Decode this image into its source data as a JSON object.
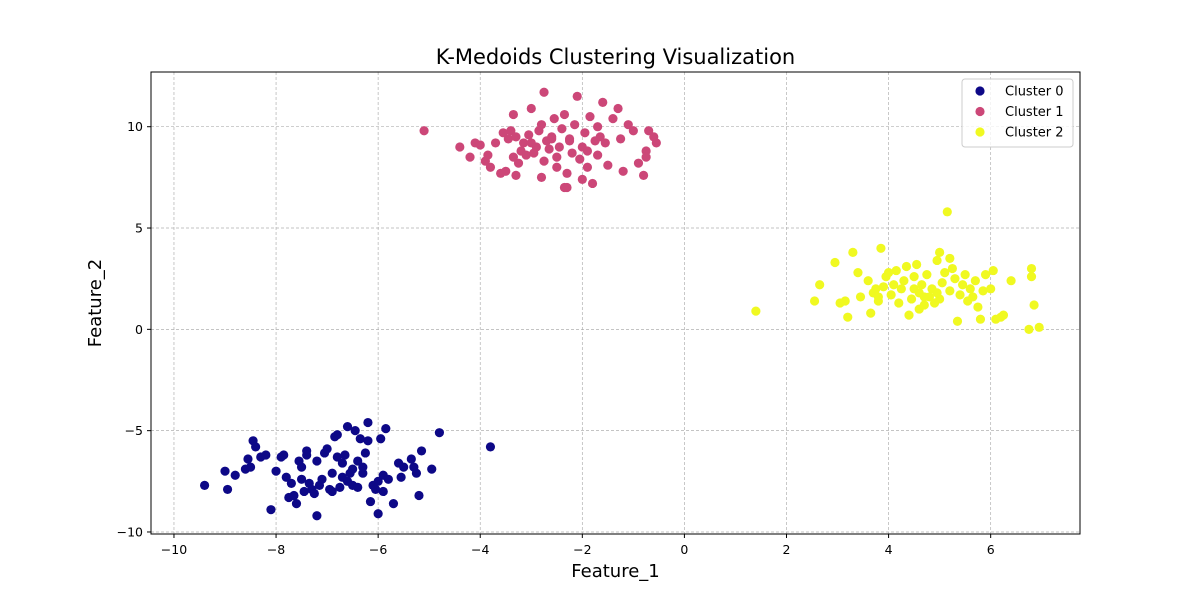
{
  "chart_data": {
    "type": "scatter",
    "title": "K-Medoids Clustering Visualization",
    "xlabel": "Feature_1",
    "ylabel": "Feature_2",
    "xlim": [
      -10.45,
      7.75
    ],
    "ylim": [
      -10.1,
      12.7
    ],
    "xticks": [
      -10,
      -8,
      -6,
      -4,
      -2,
      0,
      2,
      4,
      6
    ],
    "yticks": [
      -10,
      -5,
      0,
      5,
      10
    ],
    "xtick_labels": [
      "−10",
      "−8",
      "−6",
      "−4",
      "−2",
      "0",
      "2",
      "4",
      "6"
    ],
    "ytick_labels": [
      "−10",
      "−5",
      "0",
      "5",
      "10"
    ],
    "grid": true,
    "legend_position": "top-right",
    "series": [
      {
        "name": "Cluster 0",
        "color": "#0d0887",
        "points": [
          [
            -9.4,
            -7.7
          ],
          [
            -9.0,
            -7.0
          ],
          [
            -8.95,
            -7.9
          ],
          [
            -8.8,
            -7.2
          ],
          [
            -8.6,
            -6.9
          ],
          [
            -8.55,
            -6.4
          ],
          [
            -8.5,
            -6.8
          ],
          [
            -8.45,
            -5.5
          ],
          [
            -8.4,
            -5.8
          ],
          [
            -8.3,
            -6.3
          ],
          [
            -8.2,
            -6.2
          ],
          [
            -8.1,
            -8.9
          ],
          [
            -8.0,
            -7.0
          ],
          [
            -7.9,
            -6.3
          ],
          [
            -7.85,
            -6.2
          ],
          [
            -7.8,
            -7.3
          ],
          [
            -7.75,
            -8.3
          ],
          [
            -7.7,
            -7.6
          ],
          [
            -7.65,
            -8.2
          ],
          [
            -7.6,
            -8.6
          ],
          [
            -7.55,
            -6.5
          ],
          [
            -7.5,
            -6.8
          ],
          [
            -7.5,
            -7.4
          ],
          [
            -7.45,
            -8.0
          ],
          [
            -7.4,
            -6.2
          ],
          [
            -7.35,
            -7.6
          ],
          [
            -7.3,
            -7.9
          ],
          [
            -7.25,
            -8.1
          ],
          [
            -7.2,
            -6.5
          ],
          [
            -7.15,
            -7.7
          ],
          [
            -7.1,
            -7.4
          ],
          [
            -7.05,
            -6.1
          ],
          [
            -7.0,
            -5.9
          ],
          [
            -6.95,
            -7.9
          ],
          [
            -6.9,
            -7.1
          ],
          [
            -6.85,
            -5.3
          ],
          [
            -6.8,
            -5.2
          ],
          [
            -6.8,
            -6.3
          ],
          [
            -6.75,
            -7.8
          ],
          [
            -6.7,
            -6.6
          ],
          [
            -6.7,
            -7.3
          ],
          [
            -6.65,
            -6.2
          ],
          [
            -6.6,
            -4.8
          ],
          [
            -6.55,
            -7.1
          ],
          [
            -6.5,
            -6.9
          ],
          [
            -6.5,
            -7.7
          ],
          [
            -6.45,
            -5.0
          ],
          [
            -6.4,
            -6.5
          ],
          [
            -6.4,
            -7.8
          ],
          [
            -6.35,
            -5.4
          ],
          [
            -6.3,
            -7.1
          ],
          [
            -6.25,
            -6.1
          ],
          [
            -6.2,
            -4.6
          ],
          [
            -6.2,
            -5.5
          ],
          [
            -6.15,
            -8.5
          ],
          [
            -6.1,
            -7.7
          ],
          [
            -6.05,
            -7.9
          ],
          [
            -6.0,
            -7.5
          ],
          [
            -6.0,
            -9.1
          ],
          [
            -5.95,
            -5.4
          ],
          [
            -5.9,
            -7.2
          ],
          [
            -5.9,
            -8.0
          ],
          [
            -5.85,
            -4.9
          ],
          [
            -5.8,
            -7.4
          ],
          [
            -5.7,
            -8.6
          ],
          [
            -5.6,
            -6.6
          ],
          [
            -5.55,
            -7.3
          ],
          [
            -5.5,
            -6.8
          ],
          [
            -5.35,
            -6.4
          ],
          [
            -5.3,
            -6.8
          ],
          [
            -5.25,
            -7.1
          ],
          [
            -5.2,
            -8.2
          ],
          [
            -5.15,
            -6.0
          ],
          [
            -4.95,
            -6.9
          ],
          [
            -4.8,
            -5.1
          ],
          [
            -3.8,
            -5.8
          ],
          [
            -6.9,
            -8.0
          ],
          [
            -7.2,
            -9.2
          ],
          [
            -7.4,
            -6.0
          ],
          [
            -6.6,
            -7.5
          ],
          [
            -6.3,
            -6.8
          ]
        ]
      },
      {
        "name": "Cluster 1",
        "color": "#cc4778",
        "points": [
          [
            -5.1,
            9.8
          ],
          [
            -4.4,
            9.0
          ],
          [
            -4.2,
            8.5
          ],
          [
            -4.1,
            9.2
          ],
          [
            -4.0,
            9.1
          ],
          [
            -3.9,
            8.3
          ],
          [
            -3.85,
            8.6
          ],
          [
            -3.8,
            8.0
          ],
          [
            -3.7,
            9.2
          ],
          [
            -3.6,
            7.7
          ],
          [
            -3.55,
            9.7
          ],
          [
            -3.5,
            7.8
          ],
          [
            -3.45,
            9.4
          ],
          [
            -3.4,
            9.8
          ],
          [
            -3.35,
            8.5
          ],
          [
            -3.3,
            7.6
          ],
          [
            -3.3,
            9.5
          ],
          [
            -3.25,
            8.2
          ],
          [
            -3.2,
            8.8
          ],
          [
            -3.15,
            9.2
          ],
          [
            -3.1,
            8.6
          ],
          [
            -3.05,
            9.6
          ],
          [
            -3.0,
            10.9
          ],
          [
            -2.95,
            8.7
          ],
          [
            -2.9,
            9.0
          ],
          [
            -2.85,
            9.8
          ],
          [
            -2.8,
            10.1
          ],
          [
            -2.8,
            7.5
          ],
          [
            -2.75,
            8.3
          ],
          [
            -2.7,
            9.3
          ],
          [
            -2.65,
            8.9
          ],
          [
            -2.6,
            9.5
          ],
          [
            -2.55,
            10.4
          ],
          [
            -2.5,
            8.0
          ],
          [
            -2.45,
            9.0
          ],
          [
            -2.4,
            9.9
          ],
          [
            -2.35,
            10.6
          ],
          [
            -2.3,
            7.7
          ],
          [
            -2.3,
            7.0
          ],
          [
            -2.25,
            9.3
          ],
          [
            -2.2,
            8.7
          ],
          [
            -2.15,
            10.1
          ],
          [
            -2.1,
            11.5
          ],
          [
            -2.05,
            8.4
          ],
          [
            -2.0,
            9.0
          ],
          [
            -2.0,
            7.4
          ],
          [
            -1.95,
            9.7
          ],
          [
            -1.9,
            8.8
          ],
          [
            -1.85,
            10.5
          ],
          [
            -1.8,
            7.2
          ],
          [
            -1.75,
            9.3
          ],
          [
            -1.7,
            8.6
          ],
          [
            -1.7,
            10.0
          ],
          [
            -1.65,
            9.5
          ],
          [
            -1.6,
            11.2
          ],
          [
            -1.55,
            9.2
          ],
          [
            -1.5,
            8.1
          ],
          [
            -1.4,
            10.4
          ],
          [
            -1.3,
            10.9
          ],
          [
            -1.25,
            9.4
          ],
          [
            -1.2,
            7.8
          ],
          [
            -1.1,
            10.1
          ],
          [
            -1.0,
            9.8
          ],
          [
            -0.9,
            8.2
          ],
          [
            -0.8,
            7.6
          ],
          [
            -0.75,
            8.8
          ],
          [
            -0.7,
            9.8
          ],
          [
            -0.6,
            9.5
          ],
          [
            -0.55,
            9.2
          ],
          [
            -0.75,
            8.5
          ],
          [
            -2.75,
            11.7
          ],
          [
            -2.35,
            7.0
          ],
          [
            -3.35,
            10.6
          ],
          [
            -1.9,
            8.0
          ],
          [
            -2.6,
            9.4
          ],
          [
            -3.0,
            9.2
          ],
          [
            -2.25,
            9.4
          ],
          [
            -2.5,
            8.5
          ]
        ]
      },
      {
        "name": "Cluster 2",
        "color": "#f0f921",
        "points": [
          [
            1.4,
            0.9
          ],
          [
            2.55,
            1.4
          ],
          [
            2.65,
            2.2
          ],
          [
            2.95,
            3.3
          ],
          [
            3.05,
            1.3
          ],
          [
            3.15,
            1.4
          ],
          [
            3.2,
            0.6
          ],
          [
            3.3,
            3.8
          ],
          [
            3.4,
            2.8
          ],
          [
            3.45,
            1.6
          ],
          [
            3.6,
            2.4
          ],
          [
            3.65,
            0.8
          ],
          [
            3.7,
            1.8
          ],
          [
            3.75,
            2.0
          ],
          [
            3.8,
            1.4
          ],
          [
            3.85,
            4.0
          ],
          [
            3.9,
            2.1
          ],
          [
            3.95,
            2.6
          ],
          [
            4.0,
            2.8
          ],
          [
            4.05,
            1.7
          ],
          [
            4.1,
            2.2
          ],
          [
            4.15,
            2.9
          ],
          [
            4.2,
            1.3
          ],
          [
            4.25,
            2.0
          ],
          [
            4.3,
            2.4
          ],
          [
            4.35,
            3.1
          ],
          [
            4.4,
            0.7
          ],
          [
            4.45,
            1.5
          ],
          [
            4.5,
            2.6
          ],
          [
            4.55,
            3.2
          ],
          [
            4.6,
            1.8
          ],
          [
            4.6,
            1.0
          ],
          [
            4.65,
            2.2
          ],
          [
            4.7,
            1.2
          ],
          [
            4.75,
            2.7
          ],
          [
            4.8,
            1.6
          ],
          [
            4.85,
            2.0
          ],
          [
            4.9,
            1.3
          ],
          [
            4.95,
            3.4
          ],
          [
            5.0,
            3.8
          ],
          [
            5.0,
            1.5
          ],
          [
            5.05,
            2.3
          ],
          [
            5.1,
            2.8
          ],
          [
            5.15,
            5.8
          ],
          [
            5.2,
            1.9
          ],
          [
            5.25,
            3.0
          ],
          [
            5.3,
            2.5
          ],
          [
            5.35,
            0.4
          ],
          [
            5.4,
            1.7
          ],
          [
            5.45,
            2.2
          ],
          [
            5.5,
            2.7
          ],
          [
            5.55,
            1.4
          ],
          [
            5.6,
            2.0
          ],
          [
            5.65,
            1.6
          ],
          [
            5.7,
            2.4
          ],
          [
            5.75,
            1.1
          ],
          [
            5.85,
            1.9
          ],
          [
            5.9,
            2.7
          ],
          [
            6.0,
            2.0
          ],
          [
            6.05,
            2.9
          ],
          [
            6.1,
            0.5
          ],
          [
            6.2,
            0.6
          ],
          [
            6.25,
            0.7
          ],
          [
            6.4,
            2.4
          ],
          [
            6.75,
            0.0
          ],
          [
            6.8,
            3.0
          ],
          [
            6.8,
            2.6
          ],
          [
            6.85,
            1.2
          ],
          [
            6.95,
            0.1
          ],
          [
            5.2,
            3.5
          ],
          [
            4.95,
            1.8
          ],
          [
            5.8,
            0.5
          ],
          [
            4.5,
            2.0
          ],
          [
            3.8,
            1.6
          ],
          [
            4.7,
            1.6
          ]
        ]
      }
    ]
  }
}
